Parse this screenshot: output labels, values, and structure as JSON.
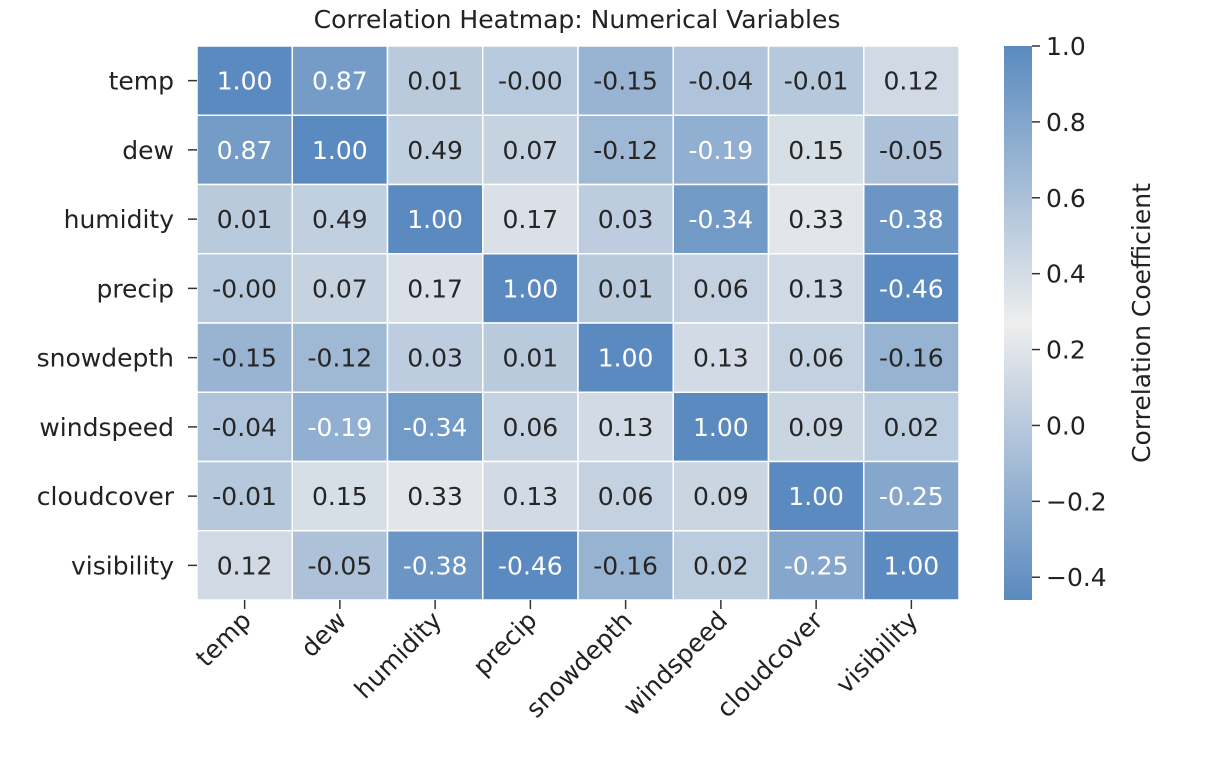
{
  "chart_data": {
    "type": "heatmap",
    "title": "Correlation Heatmap: Numerical Variables",
    "variables": [
      "temp",
      "dew",
      "humidity",
      "precip",
      "snowdepth",
      "windspeed",
      "cloudcover",
      "visibility"
    ],
    "matrix": [
      [
        1.0,
        0.87,
        0.01,
        -0.0,
        -0.15,
        -0.04,
        -0.01,
        0.12
      ],
      [
        0.87,
        1.0,
        0.49,
        0.07,
        -0.12,
        -0.19,
        0.15,
        -0.05
      ],
      [
        0.01,
        0.49,
        1.0,
        0.17,
        0.03,
        -0.34,
        0.33,
        -0.38
      ],
      [
        -0.0,
        0.07,
        0.17,
        1.0,
        0.01,
        0.06,
        0.13,
        -0.46
      ],
      [
        -0.15,
        -0.12,
        0.03,
        0.01,
        1.0,
        0.13,
        0.06,
        -0.16
      ],
      [
        -0.04,
        -0.19,
        -0.34,
        0.06,
        0.13,
        1.0,
        0.09,
        0.02
      ],
      [
        -0.01,
        0.15,
        0.33,
        0.13,
        0.06,
        0.09,
        1.0,
        -0.25
      ],
      [
        0.12,
        -0.05,
        -0.38,
        -0.46,
        -0.16,
        0.02,
        -0.25,
        1.0
      ]
    ],
    "annotations": [
      [
        "1.00",
        "0.87",
        "0.01",
        "-0.00",
        "-0.15",
        "-0.04",
        "-0.01",
        "0.12"
      ],
      [
        "0.87",
        "1.00",
        "0.49",
        "0.07",
        "-0.12",
        "-0.19",
        "0.15",
        "-0.05"
      ],
      [
        "0.01",
        "0.49",
        "1.00",
        "0.17",
        "0.03",
        "-0.34",
        "0.33",
        "-0.38"
      ],
      [
        "-0.00",
        "0.07",
        "0.17",
        "1.00",
        "0.01",
        "0.06",
        "0.13",
        "-0.46"
      ],
      [
        "-0.15",
        "-0.12",
        "0.03",
        "0.01",
        "1.00",
        "0.13",
        "0.06",
        "-0.16"
      ],
      [
        "-0.04",
        "-0.19",
        "-0.34",
        "0.06",
        "0.13",
        "1.00",
        "0.09",
        "0.02"
      ],
      [
        "-0.01",
        "0.15",
        "0.33",
        "0.13",
        "0.06",
        "0.09",
        "1.00",
        "-0.25"
      ],
      [
        "0.12",
        "-0.05",
        "-0.38",
        "-0.46",
        "-0.16",
        "0.02",
        "-0.25",
        "1.00"
      ]
    ],
    "colorbar": {
      "label": "Correlation Coefficient",
      "range": [
        -0.46,
        1.0
      ],
      "center": 0.27,
      "ticks": [
        1.0,
        0.8,
        0.6,
        0.4,
        0.2,
        0.0,
        -0.2,
        -0.4
      ],
      "tick_labels": [
        "1.0",
        "0.8",
        "0.6",
        "0.4",
        "0.2",
        "0.0",
        "−0.2",
        "−0.4"
      ],
      "colors": {
        "extreme": "#5a8abf",
        "center": "#eeeeee"
      }
    },
    "grid": false,
    "cell_border_color": "#ffffff"
  }
}
